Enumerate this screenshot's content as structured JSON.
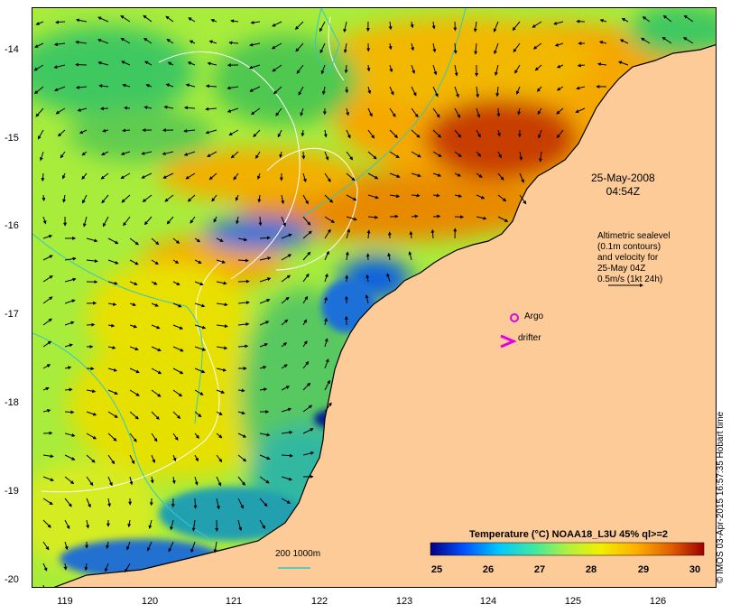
{
  "map": {
    "date_line1": "25-May-2008",
    "date_line2": "04:54Z",
    "legend_text": [
      "Altimetric sealevel",
      "(0.1m contours)",
      "and velocity for",
      "25-May 04Z",
      "0.5m/s (1kt 24h)"
    ],
    "argo_label": "Argo",
    "drifter_label": "drifter",
    "isobath_label": "200  1000m",
    "copyright": "© IMOS 03-Apr-2015 16:57:35 Hobart time",
    "colors": {
      "land": "#fdcb98",
      "argo": "#e000e0",
      "drifter": "#e000e0",
      "isobath": "#2ec8c8",
      "contour": "#ffffff",
      "arrow": "#000000"
    }
  },
  "x_axis": {
    "ticks": [
      "119",
      "120",
      "121",
      "122",
      "123",
      "124",
      "125",
      "126"
    ]
  },
  "y_axis": {
    "ticks": [
      "-14",
      "-15",
      "-16",
      "-17",
      "-18",
      "-19",
      "-20"
    ]
  },
  "colorbar": {
    "title": "Temperature (°C) NOAA18_L3U 45% ql>=2",
    "ticks": [
      "25",
      "26",
      "27",
      "28",
      "29",
      "30"
    ],
    "colors": [
      "#000080",
      "#0050ff",
      "#00c8ff",
      "#40e8a0",
      "#b0f040",
      "#f0f000",
      "#ffb000",
      "#e06000",
      "#a00000"
    ]
  }
}
